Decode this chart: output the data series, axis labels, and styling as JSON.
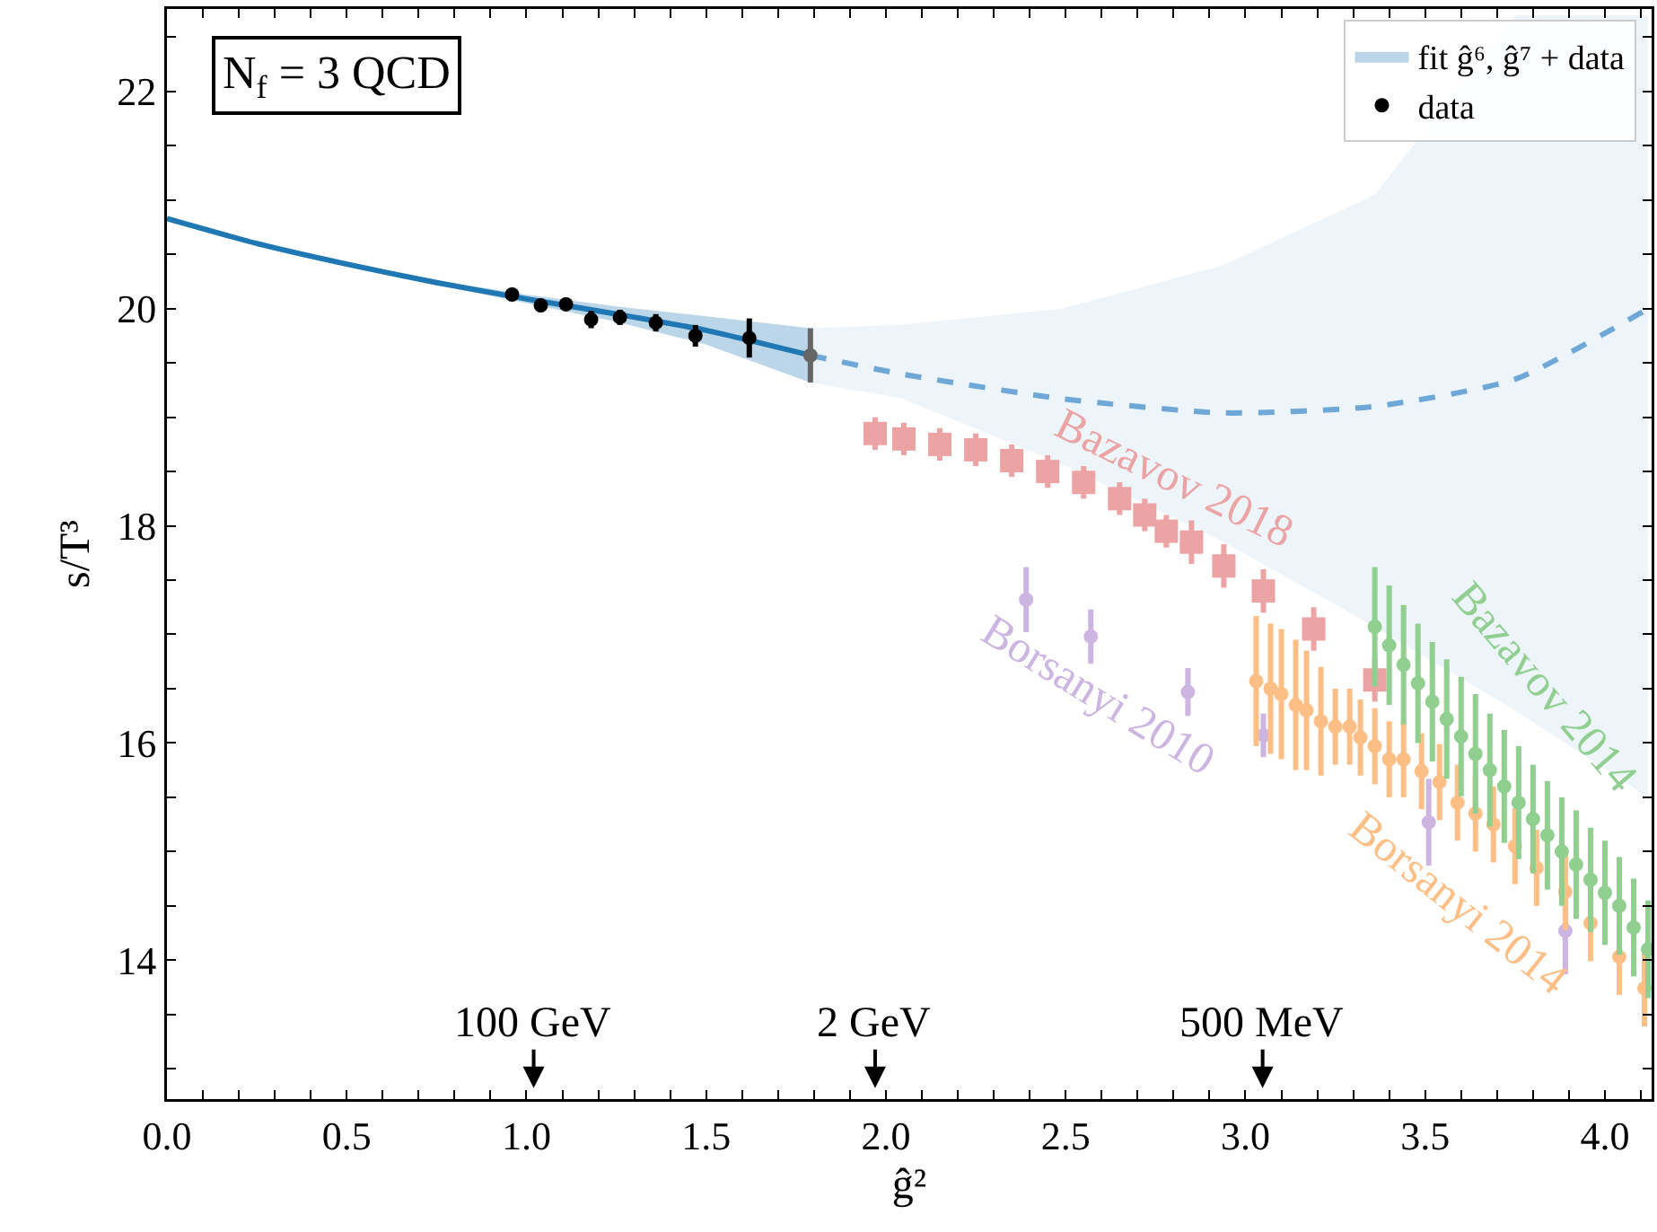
{
  "chart_data": {
    "type": "scatter",
    "xlabel": "ĝ²",
    "ylabel": "s/T³",
    "xlim": [
      0,
      4.13
    ],
    "ylim": [
      12.72,
      22.76
    ],
    "xticks": [
      {
        "value": 0,
        "label": "0.0"
      },
      {
        "value": 0.1,
        "label": null
      },
      {
        "value": 0.2,
        "label": null
      },
      {
        "value": 0.3,
        "label": null
      },
      {
        "value": 0.4,
        "label": null
      },
      {
        "value": 0.5,
        "label": "0.5"
      },
      {
        "value": 0.6,
        "label": null
      },
      {
        "value": 0.7,
        "label": null
      },
      {
        "value": 0.8,
        "label": null
      },
      {
        "value": 0.9,
        "label": null
      },
      {
        "value": 1,
        "label": "1.0"
      },
      {
        "value": 1.1,
        "label": null
      },
      {
        "value": 1.2,
        "label": null
      },
      {
        "value": 1.3,
        "label": null
      },
      {
        "value": 1.4,
        "label": null
      },
      {
        "value": 1.5,
        "label": "1.5"
      },
      {
        "value": 1.6,
        "label": null
      },
      {
        "value": 1.7,
        "label": null
      },
      {
        "value": 1.8,
        "label": null
      },
      {
        "value": 1.9,
        "label": null
      },
      {
        "value": 2,
        "label": "2.0"
      },
      {
        "value": 2.1,
        "label": null
      },
      {
        "value": 2.2,
        "label": null
      },
      {
        "value": 2.3,
        "label": null
      },
      {
        "value": 2.4,
        "label": null
      },
      {
        "value": 2.5,
        "label": "2.5"
      },
      {
        "value": 2.6,
        "label": null
      },
      {
        "value": 2.7,
        "label": null
      },
      {
        "value": 2.8,
        "label": null
      },
      {
        "value": 2.9,
        "label": null
      },
      {
        "value": 3,
        "label": "3.0"
      },
      {
        "value": 3.1,
        "label": null
      },
      {
        "value": 3.2,
        "label": null
      },
      {
        "value": 3.3,
        "label": null
      },
      {
        "value": 3.4,
        "label": null
      },
      {
        "value": 3.5,
        "label": "3.5"
      },
      {
        "value": 3.6,
        "label": null
      },
      {
        "value": 3.7,
        "label": null
      },
      {
        "value": 3.8,
        "label": null
      },
      {
        "value": 3.9,
        "label": null
      },
      {
        "value": 4,
        "label": "4.0"
      },
      {
        "value": 4.1,
        "label": null
      }
    ],
    "yticks": [
      {
        "value": 13,
        "label": null
      },
      {
        "value": 13.5,
        "label": null
      },
      14,
      {
        "value": 14.5,
        "label": null
      },
      {
        "value": 15,
        "label": null
      },
      {
        "value": 15.5,
        "label": null
      },
      16,
      {
        "value": 16.5,
        "label": null
      },
      {
        "value": 17,
        "label": null
      },
      {
        "value": 17.5,
        "label": null
      },
      18,
      {
        "value": 18.5,
        "label": null
      },
      {
        "value": 19,
        "label": null
      },
      {
        "value": 19.5,
        "label": null
      },
      20,
      {
        "value": 20.5,
        "label": null
      },
      {
        "value": 21,
        "label": null
      },
      {
        "value": 21.5,
        "label": null
      },
      22,
      {
        "value": 22.5,
        "label": null
      }
    ],
    "grid": false,
    "legend": "top right",
    "series": [
      {
        "name": "fit ĝ⁶, ĝ⁷ + data",
        "type": "line",
        "line_style": "solid",
        "marker": "none",
        "color": "#1f77b4",
        "x": [
          0,
          0.25,
          0.5,
          0.75,
          1.0,
          1.25,
          1.5,
          1.79
        ],
        "values": [
          20.83,
          20.6,
          20.41,
          20.24,
          20.09,
          19.95,
          19.8,
          19.57
        ],
        "lower": [
          20.83,
          20.6,
          20.4,
          20.22,
          20.05,
          19.88,
          19.67,
          19.32
        ],
        "upper": [
          20.83,
          20.6,
          20.42,
          20.26,
          20.13,
          20.02,
          19.93,
          19.82
        ]
      },
      {
        "type": "line",
        "line_style": "dashed",
        "marker": "none",
        "color": "#6fa8d6",
        "x": [
          1.79,
          2.04,
          2.49,
          2.94,
          3.36,
          3.75,
          4.12
        ],
        "values": [
          19.57,
          19.4,
          19.17,
          19.04,
          19.1,
          19.35,
          20.0
        ],
        "lower": [
          19.32,
          19.18,
          18.57,
          17.85,
          17.07,
          16.3,
          15.5
        ],
        "upper": [
          19.82,
          19.85,
          20.0,
          20.4,
          21.05,
          22.7,
          22.7
        ]
      },
      {
        "name": "data",
        "marker": "circle",
        "color": "#000000",
        "x": [
          0.96,
          1.04,
          1.11,
          1.18,
          1.26,
          1.36,
          1.47,
          1.62
        ],
        "values": [
          20.13,
          20.03,
          20.04,
          19.9,
          19.92,
          19.87,
          19.75,
          19.73
        ],
        "errors": [
          0.06,
          0.06,
          0.06,
          0.08,
          0.07,
          0.08,
          0.1,
          0.18
        ]
      },
      {
        "marker": "circle",
        "color": "#666666",
        "x": [
          1.79
        ],
        "values": [
          19.57
        ],
        "errors": [
          0.25
        ]
      },
      {
        "name": "Bazavov 2018",
        "marker": "square",
        "color": "#eba3a3",
        "x": [
          1.97,
          2.05,
          2.15,
          2.25,
          2.35,
          2.45,
          2.55,
          2.65,
          2.72,
          2.78,
          2.85,
          2.94,
          3.05,
          3.19,
          3.36
        ],
        "values": [
          18.85,
          18.8,
          18.75,
          18.7,
          18.6,
          18.5,
          18.4,
          18.25,
          18.1,
          17.95,
          17.85,
          17.63,
          17.4,
          17.05,
          16.58
        ],
        "errors": [
          0.15,
          0.15,
          0.15,
          0.15,
          0.15,
          0.15,
          0.15,
          0.15,
          0.15,
          0.15,
          0.2,
          0.2,
          0.2,
          0.2,
          0.2
        ]
      },
      {
        "name": "Borsanyi 2010",
        "marker": "circle",
        "color": "#cdb5e2",
        "x": [
          2.39,
          2.57,
          2.84,
          3.05,
          3.51,
          3.89
        ],
        "values": [
          17.32,
          16.98,
          16.47,
          16.07,
          15.27,
          14.27
        ],
        "errors": [
          0.3,
          0.25,
          0.22,
          0.2,
          0.4,
          0.4
        ]
      },
      {
        "name": "Borsanyi 2014",
        "marker": "circle",
        "color": "#fdbf86",
        "x": [
          3.03,
          3.07,
          3.1,
          3.14,
          3.17,
          3.21,
          3.25,
          3.29,
          3.32,
          3.36,
          3.4,
          3.44,
          3.49,
          3.54,
          3.59,
          3.64,
          3.69,
          3.75,
          3.81,
          3.89,
          3.96,
          4.04,
          4.11
        ],
        "values": [
          16.57,
          16.5,
          16.45,
          16.35,
          16.3,
          16.2,
          16.15,
          16.15,
          16.05,
          15.97,
          15.85,
          15.85,
          15.74,
          15.64,
          15.45,
          15.35,
          15.25,
          15.05,
          14.85,
          14.63,
          14.34,
          14.03,
          13.74
        ],
        "errors": [
          0.6,
          0.6,
          0.6,
          0.6,
          0.55,
          0.5,
          0.35,
          0.35,
          0.35,
          0.35,
          0.35,
          0.35,
          0.35,
          0.35,
          0.35,
          0.35,
          0.35,
          0.35,
          0.35,
          0.35,
          0.35,
          0.35,
          0.35
        ]
      },
      {
        "name": "Bazavov 2014",
        "marker": "circle",
        "color": "#90cf8f",
        "x": [
          3.36,
          3.4,
          3.44,
          3.48,
          3.52,
          3.56,
          3.6,
          3.64,
          3.68,
          3.72,
          3.76,
          3.8,
          3.84,
          3.88,
          3.92,
          3.96,
          4.0,
          4.04,
          4.08,
          4.12
        ],
        "values": [
          17.07,
          16.9,
          16.72,
          16.55,
          16.38,
          16.22,
          16.06,
          15.9,
          15.75,
          15.6,
          15.45,
          15.3,
          15.15,
          15.0,
          14.88,
          14.74,
          14.62,
          14.5,
          14.3,
          14.1
        ],
        "errors": [
          0.55,
          0.55,
          0.55,
          0.55,
          0.55,
          0.55,
          0.55,
          0.55,
          0.52,
          0.52,
          0.52,
          0.5,
          0.5,
          0.5,
          0.5,
          0.48,
          0.48,
          0.45,
          0.45,
          0.45
        ]
      }
    ],
    "annotations": [
      "N$_{f}$ = 3 QCD",
      "100 GeV",
      "2 GeV",
      "500 MeV"
    ]
  }
}
